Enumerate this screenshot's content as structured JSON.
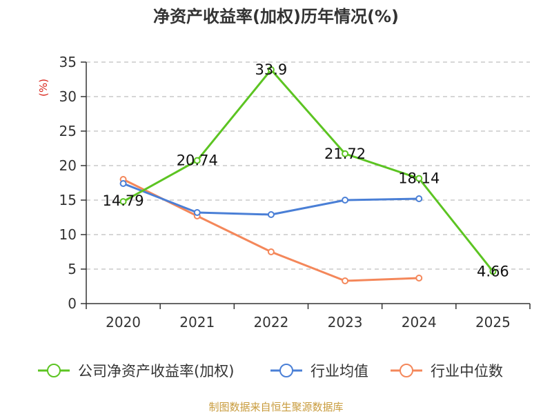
{
  "chart_data": {
    "type": "line",
    "title": "净资产收益率(加权)历年情况(%)",
    "ylabel": "(%)",
    "xlabel": "",
    "categories": [
      "2020",
      "2021",
      "2022",
      "2023",
      "2024",
      "2025"
    ],
    "ylim": [
      0,
      35
    ],
    "yticks": [
      0,
      5,
      10,
      15,
      20,
      25,
      30,
      35
    ],
    "grid": true,
    "legend_position": "bottom",
    "series": [
      {
        "name": "公司净资产收益率(加权)",
        "color": "#5cc422",
        "values": [
          14.79,
          20.74,
          33.9,
          21.72,
          18.14,
          4.66
        ],
        "labels": [
          "14.79",
          "20.74",
          "33.9",
          "21.72",
          "18.14",
          "4.66"
        ]
      },
      {
        "name": "行业均值",
        "color": "#4a7fd6",
        "values": [
          17.4,
          13.2,
          12.9,
          15.0,
          15.2,
          null
        ]
      },
      {
        "name": "行业中位数",
        "color": "#f4875a",
        "values": [
          18.0,
          12.7,
          7.5,
          3.3,
          3.7,
          null
        ]
      }
    ],
    "source": "制图数据来自恒生聚源数据库",
    "source_color": "#c89b3c",
    "ylabel_color": "#d9241a"
  }
}
